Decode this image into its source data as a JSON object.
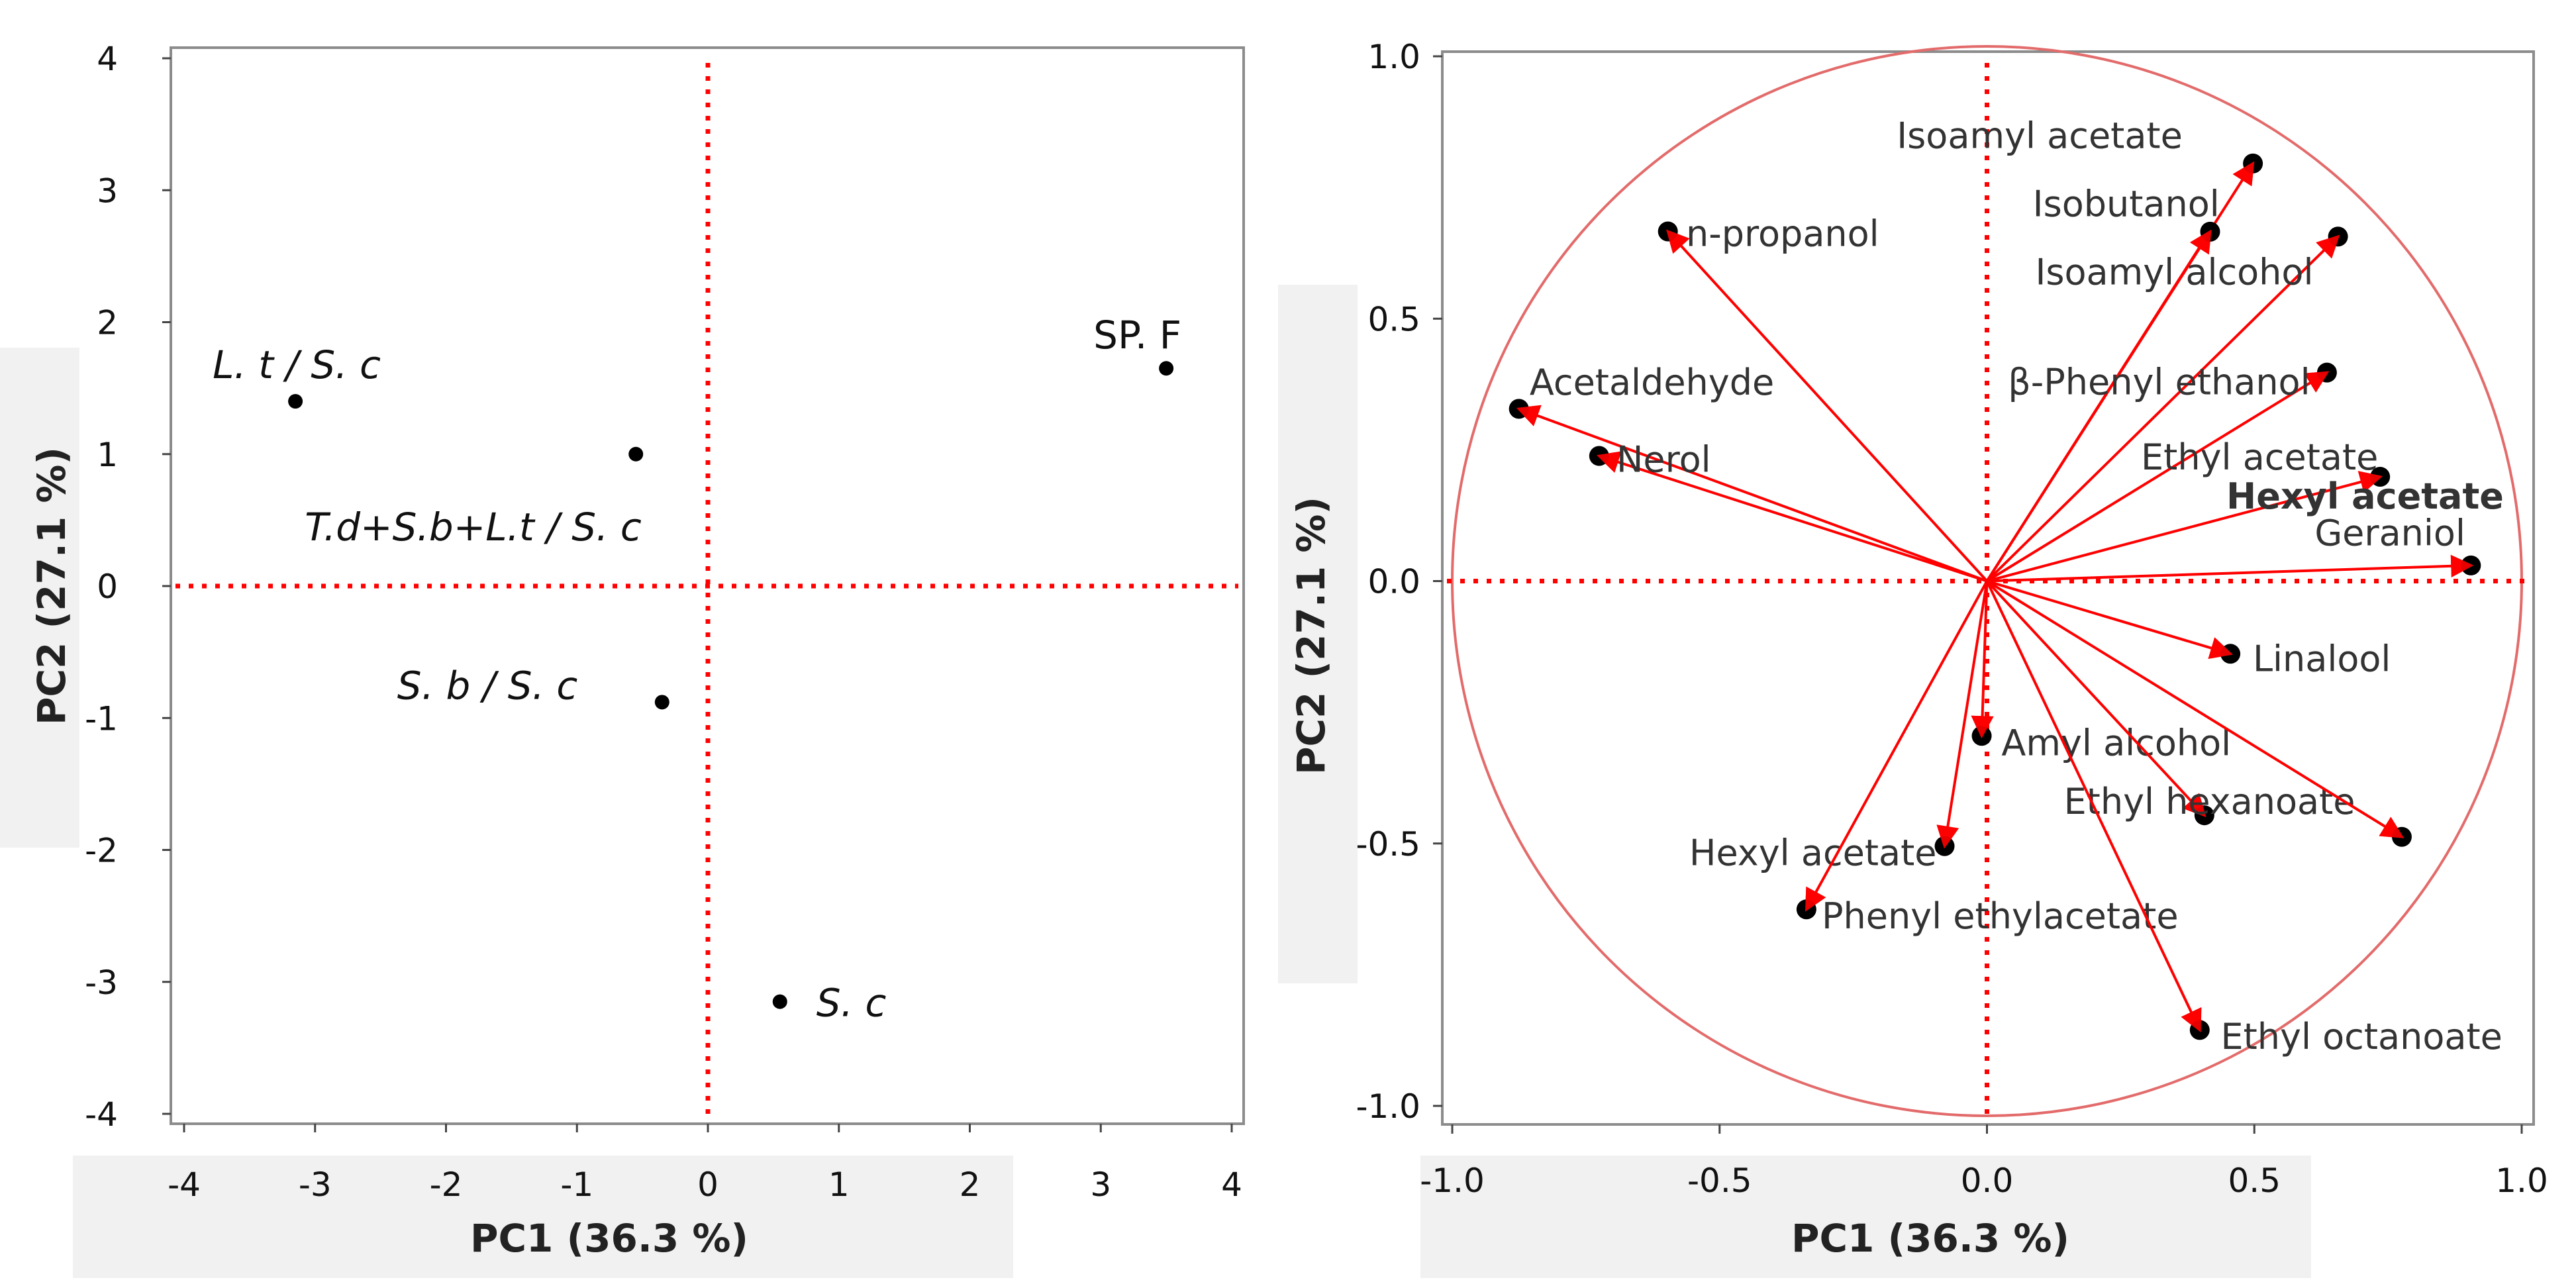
{
  "chart_data": [
    {
      "type": "scatter",
      "title": "",
      "xlabel": "PC1 (36.3 %)",
      "ylabel": "PC2 (27.1 %)",
      "xlim": [
        -4,
        4
      ],
      "ylim": [
        -4,
        4
      ],
      "xticks": [
        -4,
        -3,
        -2,
        -1,
        0,
        1,
        2,
        3,
        4
      ],
      "yticks": [
        -4,
        -3,
        -2,
        -1,
        0,
        1,
        2,
        3,
        4
      ],
      "grid": false,
      "reference_lines": {
        "x": 0,
        "y": 0,
        "color": "#ff0000",
        "style": "dotted"
      },
      "points": [
        {
          "label": "L. t / S. c",
          "x": -3.15,
          "y": 1.4,
          "italic": true
        },
        {
          "label": "T.d+S.b+L.t / S. c",
          "x": -0.55,
          "y": 1.0,
          "italic": true
        },
        {
          "label": "SP. F",
          "x": 3.5,
          "y": 1.65,
          "italic": false
        },
        {
          "label": "S. b / S. c",
          "x": -0.35,
          "y": -0.88,
          "italic": true
        },
        {
          "label": "S. c",
          "x": 0.55,
          "y": -3.15,
          "italic": true
        }
      ]
    },
    {
      "type": "scatter",
      "subtype": "loading-plot",
      "title": "",
      "xlabel": "PC1 (36.3 %)",
      "ylabel": "PC2 (27.1 %)",
      "xlim": [
        -1.0,
        1.0
      ],
      "ylim": [
        -1.0,
        1.0
      ],
      "xticks": [
        "-1.0",
        "-0.5",
        "0.0",
        "0.5",
        "1.0"
      ],
      "yticks": [
        "-1.0",
        "-0.5",
        "0.0",
        "0.5",
        "1.0"
      ],
      "grid": false,
      "unit_circle": true,
      "reference_lines": {
        "x": 0,
        "y": 0,
        "color": "#ff0000",
        "style": "dotted"
      },
      "vectors": [
        {
          "label": "Isoamyl acetate",
          "x": 0.5,
          "y": 0.8
        },
        {
          "label": "Isobutanol",
          "x": 0.42,
          "y": 0.67
        },
        {
          "label": "Isoamyl alcohol",
          "x": 0.66,
          "y": 0.66
        },
        {
          "label": "β-Phenyl ethanol",
          "x": 0.64,
          "y": 0.4
        },
        {
          "label": "Ethyl acetate",
          "x": 0.74,
          "y": 0.2
        },
        {
          "label": "Hexyl acetate",
          "x": 0.0,
          "y": 0.0,
          "bold": true,
          "label_only": true
        },
        {
          "label": "Geraniol",
          "x": 0.91,
          "y": 0.03
        },
        {
          "label": "Linalool",
          "x": 0.46,
          "y": -0.14
        },
        {
          "label": "n-propanol",
          "x": -0.6,
          "y": 0.67
        },
        {
          "label": "Acetaldehyde",
          "x": -0.88,
          "y": 0.33
        },
        {
          "label": "Nerol",
          "x": -0.73,
          "y": 0.24
        },
        {
          "label": "Amyl alcohol",
          "x": -0.01,
          "y": -0.3
        },
        {
          "label": "Ethyl hexanoate",
          "x": 0.41,
          "y": -0.45
        },
        {
          "label": "Ethyl hexanoate arrow",
          "x": 0.78,
          "y": -0.49,
          "no_label": true
        },
        {
          "label": "Hexyl acetate",
          "x": -0.08,
          "y": -0.51
        },
        {
          "label": "Phenyl ethylacetate",
          "x": -0.34,
          "y": -0.63
        },
        {
          "label": "Ethyl octanoate",
          "x": 0.4,
          "y": -0.86
        }
      ]
    }
  ],
  "colors": {
    "accent": "#ff0000",
    "circle": "#e36b6b",
    "frame": "#8c8c8c",
    "point": "#000000"
  }
}
